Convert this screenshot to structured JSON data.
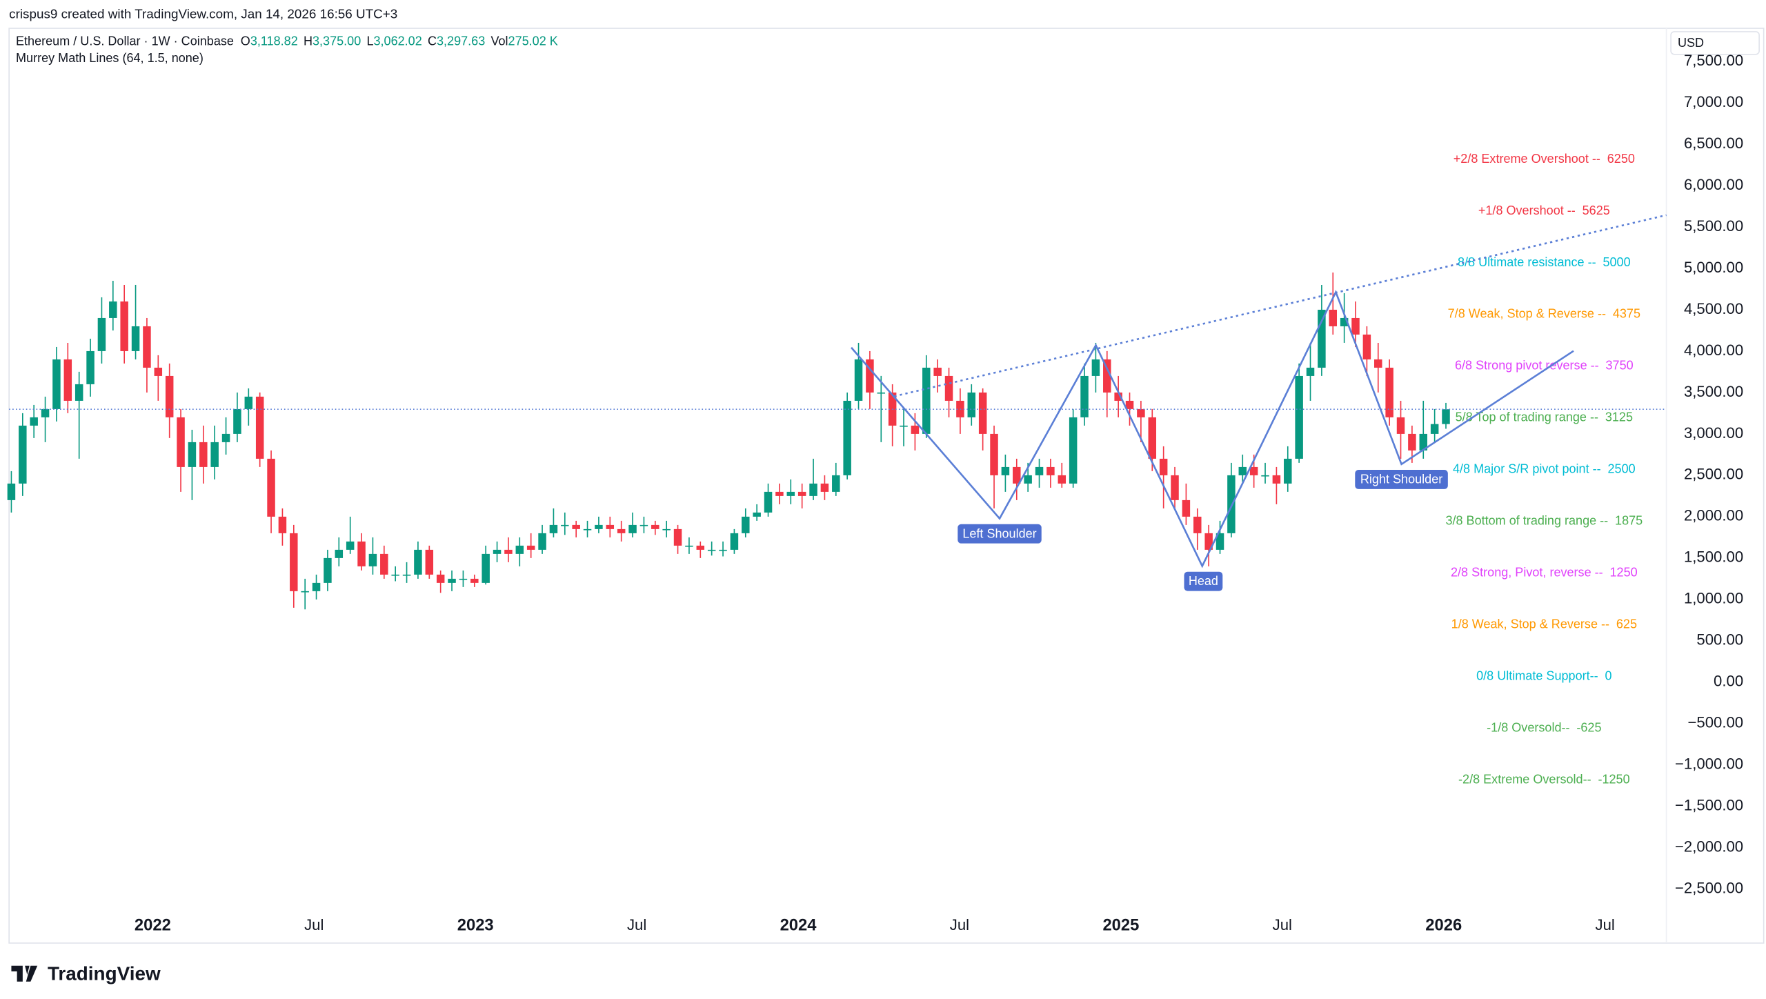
{
  "header": {
    "credit": "crispus9 created with TradingView.com, Jan 14, 2026 16:56 UTC+3",
    "symbol": "Ethereum / U.S. Dollar · 1W · Coinbase",
    "ohlc": [
      {
        "key": "O",
        "value": "3,118.82"
      },
      {
        "key": "H",
        "value": "3,375.00"
      },
      {
        "key": "L",
        "value": "3,062.02"
      },
      {
        "key": "C",
        "value": "3,297.63"
      },
      {
        "key": "Vol",
        "value": "275.02 K"
      }
    ],
    "indicator": "Murrey Math Lines (64, 1.5, none)"
  },
  "chart_data": {
    "type": "candlestick",
    "y_axis_label": "USD",
    "up_color": "#089981",
    "down_color": "#f23645",
    "grid": false,
    "xlim": [
      2021.555,
      2026.69
    ],
    "ylim": [
      -2700,
      7900
    ],
    "xticks": [
      2022,
      {
        "value": 2022.5,
        "label": "Jul"
      },
      2023,
      {
        "value": 2023.5,
        "label": "Jul"
      },
      2024,
      {
        "value": 2024.5,
        "label": "Jul"
      },
      2025,
      {
        "value": 2025.5,
        "label": "Jul"
      },
      2026,
      {
        "value": 2026.5,
        "label": "Jul"
      }
    ],
    "yticks": [
      {
        "value": 7500,
        "label": "7,500.00"
      },
      {
        "value": 7000,
        "label": "7,000.00"
      },
      {
        "value": 6500,
        "label": "6,500.00"
      },
      {
        "value": 6000,
        "label": "6,000.00"
      },
      {
        "value": 5500,
        "label": "5,500.00"
      },
      {
        "value": 5000,
        "label": "5,000.00"
      },
      {
        "value": 4500,
        "label": "4,500.00"
      },
      {
        "value": 4000,
        "label": "4,000.00"
      },
      {
        "value": 3500,
        "label": "3,500.00"
      },
      {
        "value": 3000,
        "label": "3,000.00"
      },
      {
        "value": 2500,
        "label": "2,500.00"
      },
      {
        "value": 2000,
        "label": "2,000.00"
      },
      {
        "value": 1500,
        "label": "1,500.00"
      },
      {
        "value": 1000,
        "label": "1,000.00"
      },
      {
        "value": 500,
        "label": "500.00"
      },
      {
        "value": 0,
        "label": "0.00"
      },
      {
        "value": -500,
        "label": "−500.00"
      },
      {
        "value": -1000,
        "label": "−1,000.00"
      },
      {
        "value": -1500,
        "label": "−1,500.00"
      },
      {
        "value": -2000,
        "label": "−2,000.00"
      },
      {
        "value": -2500,
        "label": "−2,500.00"
      }
    ],
    "x": [
      2021.562,
      2021.597,
      2021.632,
      2021.667,
      2021.702,
      2021.737,
      2021.772,
      2021.807,
      2021.842,
      2021.877,
      2021.912,
      2021.947,
      2021.982,
      2022.017,
      2022.052,
      2022.087,
      2022.122,
      2022.157,
      2022.192,
      2022.227,
      2022.262,
      2022.297,
      2022.332,
      2022.367,
      2022.402,
      2022.437,
      2022.472,
      2022.507,
      2022.542,
      2022.577,
      2022.612,
      2022.647,
      2022.682,
      2022.717,
      2022.752,
      2022.787,
      2022.822,
      2022.857,
      2022.892,
      2022.927,
      2022.962,
      2022.997,
      2023.032,
      2023.067,
      2023.102,
      2023.137,
      2023.172,
      2023.207,
      2023.242,
      2023.277,
      2023.312,
      2023.347,
      2023.382,
      2023.417,
      2023.452,
      2023.487,
      2023.522,
      2023.557,
      2023.592,
      2023.627,
      2023.662,
      2023.697,
      2023.732,
      2023.767,
      2023.802,
      2023.837,
      2023.872,
      2023.907,
      2023.942,
      2023.977,
      2024.012,
      2024.047,
      2024.082,
      2024.117,
      2024.152,
      2024.187,
      2024.222,
      2024.257,
      2024.292,
      2024.327,
      2024.362,
      2024.397,
      2024.432,
      2024.467,
      2024.502,
      2024.537,
      2024.572,
      2024.607,
      2024.642,
      2024.677,
      2024.712,
      2024.747,
      2024.782,
      2024.817,
      2024.852,
      2024.887,
      2024.922,
      2024.957,
      2024.992,
      2025.027,
      2025.062,
      2025.097,
      2025.132,
      2025.167,
      2025.202,
      2025.237,
      2025.272,
      2025.307,
      2025.342,
      2025.377,
      2025.412,
      2025.447,
      2025.482,
      2025.517,
      2025.552,
      2025.587,
      2025.622,
      2025.657,
      2025.692,
      2025.727,
      2025.762,
      2025.797,
      2025.832,
      2025.867,
      2025.902,
      2025.937,
      2025.972,
      2026.007
    ],
    "open": [
      2200,
      2400,
      3100,
      3200,
      3300,
      3900,
      3400,
      3600,
      4000,
      4400,
      4600,
      4000,
      4300,
      3800,
      3700,
      3200,
      2600,
      2900,
      2600,
      2900,
      3000,
      3300,
      3450,
      2700,
      2000,
      1800,
      1100,
      1100,
      1200,
      1500,
      1600,
      1700,
      1400,
      1550,
      1300,
      1300,
      1300,
      1600,
      1300,
      1200,
      1250,
      1250,
      1200,
      1550,
      1600,
      1550,
      1650,
      1600,
      1800,
      1900,
      1900,
      1850,
      1850,
      1900,
      1850,
      1800,
      1900,
      1900,
      1850,
      1850,
      1650,
      1650,
      1600,
      1600,
      1600,
      1800,
      2000,
      2050,
      2300,
      2250,
      2300,
      2250,
      2400,
      2300,
      2500,
      3400,
      3900,
      3500,
      3500,
      3100,
      3100,
      3000,
      3800,
      3700,
      3400,
      3200,
      3500,
      3000,
      2500,
      2600,
      2400,
      2500,
      2600,
      2500,
      2400,
      3200,
      3700,
      3900,
      3500,
      3400,
      3300,
      3200,
      2700,
      2500,
      2200,
      2000,
      1800,
      1600,
      1800,
      2500,
      2600,
      2500,
      2500,
      2400,
      2700,
      3700,
      3800,
      4500,
      4300,
      4400,
      4200,
      3900,
      3800,
      3200,
      3000,
      2800,
      3000,
      3118.82
    ],
    "high": [
      2550,
      3250,
      3350,
      3450,
      4050,
      4100,
      3750,
      4150,
      4650,
      4850,
      4800,
      4800,
      4400,
      3950,
      3850,
      3300,
      3050,
      3100,
      3100,
      3200,
      3500,
      3550,
      3500,
      2800,
      2100,
      1900,
      1250,
      1300,
      1600,
      1750,
      2000,
      1800,
      1750,
      1650,
      1400,
      1450,
      1700,
      1650,
      1350,
      1350,
      1350,
      1300,
      1650,
      1700,
      1750,
      1750,
      1800,
      1900,
      2100,
      2050,
      1950,
      1950,
      2000,
      2000,
      1950,
      2050,
      2000,
      1950,
      1950,
      1900,
      1750,
      1700,
      1700,
      1700,
      1850,
      2100,
      2150,
      2400,
      2400,
      2450,
      2400,
      2700,
      2500,
      2650,
      3500,
      4100,
      4000,
      3700,
      3600,
      3300,
      3250,
      3950,
      3900,
      3800,
      3550,
      3600,
      3550,
      3100,
      2750,
      2700,
      2650,
      2700,
      2700,
      2650,
      3300,
      3850,
      4100,
      4000,
      3700,
      3500,
      3400,
      3300,
      2850,
      2600,
      2400,
      2100,
      1900,
      1950,
      2650,
      2750,
      2750,
      2650,
      2600,
      2850,
      3850,
      4100,
      4800,
      4950,
      4700,
      4600,
      4300,
      4100,
      3900,
      3400,
      3100,
      3400,
      3300,
      3375
    ],
    "low": [
      2050,
      2250,
      2950,
      2900,
      3150,
      3250,
      2700,
      3450,
      3850,
      4250,
      3850,
      3900,
      3500,
      3400,
      2950,
      2300,
      2200,
      2400,
      2450,
      2750,
      2900,
      3100,
      2600,
      1800,
      1650,
      900,
      880,
      1000,
      1100,
      1400,
      1550,
      1350,
      1300,
      1250,
      1220,
      1200,
      1250,
      1250,
      1080,
      1100,
      1150,
      1150,
      1180,
      1450,
      1450,
      1400,
      1500,
      1550,
      1750,
      1780,
      1750,
      1750,
      1800,
      1750,
      1700,
      1750,
      1800,
      1780,
      1750,
      1550,
      1550,
      1500,
      1530,
      1520,
      1550,
      1750,
      1950,
      2000,
      2150,
      2150,
      2100,
      2200,
      2200,
      2250,
      2450,
      3300,
      3300,
      2900,
      2850,
      2850,
      2800,
      2950,
      3500,
      3200,
      3000,
      3100,
      2800,
      2100,
      2300,
      2200,
      2300,
      2350,
      2350,
      2350,
      2350,
      3100,
      3500,
      3200,
      3200,
      3100,
      2900,
      2550,
      2100,
      2100,
      1900,
      1600,
      1400,
      1550,
      1750,
      2400,
      2350,
      2400,
      2150,
      2300,
      2650,
      3400,
      3700,
      4200,
      4100,
      4050,
      3700,
      3500,
      3100,
      2700,
      2650,
      2700,
      2900,
      3062.02
    ],
    "close": [
      2400,
      3100,
      3200,
      3300,
      3900,
      3400,
      3600,
      4000,
      4400,
      4600,
      4000,
      4300,
      3800,
      3700,
      3200,
      2600,
      2900,
      2600,
      2900,
      3000,
      3300,
      3450,
      2700,
      2000,
      1800,
      1100,
      1100,
      1200,
      1500,
      1600,
      1700,
      1400,
      1550,
      1300,
      1300,
      1300,
      1600,
      1300,
      1200,
      1250,
      1250,
      1200,
      1550,
      1600,
      1550,
      1650,
      1600,
      1800,
      1900,
      1900,
      1850,
      1850,
      1900,
      1850,
      1800,
      1900,
      1900,
      1850,
      1850,
      1650,
      1650,
      1600,
      1600,
      1600,
      1800,
      2000,
      2050,
      2300,
      2250,
      2300,
      2250,
      2400,
      2300,
      2500,
      3400,
      3900,
      3500,
      3500,
      3100,
      3100,
      3000,
      3800,
      3700,
      3400,
      3200,
      3500,
      3000,
      2500,
      2600,
      2400,
      2500,
      2600,
      2500,
      2400,
      3200,
      3700,
      3900,
      3500,
      3400,
      3300,
      3200,
      2700,
      2500,
      2200,
      2000,
      1800,
      1600,
      1800,
      2500,
      2600,
      2500,
      2500,
      2400,
      2700,
      3700,
      3800,
      4500,
      4300,
      4400,
      4200,
      3900,
      3800,
      3200,
      3000,
      2800,
      3000,
      3118.82,
      3297.63
    ],
    "murrey_levels": [
      {
        "name": "+2/8 Extreme Overshoot --",
        "value": 6250,
        "color": "#f23645"
      },
      {
        "name": "+1/8 Overshoot --",
        "value": 5625,
        "color": "#f23645"
      },
      {
        "name": "8/8 Ultimate resistance --",
        "value": 5000,
        "color": "#00bcd4"
      },
      {
        "name": "7/8 Weak, Stop & Reverse --",
        "value": 4375,
        "color": "#ff9800"
      },
      {
        "name": "6/8 Strong pivot reverse --",
        "value": 3750,
        "color": "#e040fb"
      },
      {
        "name": "5/8 Top of trading range --",
        "value": 3125,
        "color": "#4caf50"
      },
      {
        "name": "4/8 Major S/R pivot point --",
        "value": 2500,
        "color": "#00bcd4"
      },
      {
        "name": "3/8 Bottom of trading range --",
        "value": 1875,
        "color": "#4caf50"
      },
      {
        "name": "2/8 Strong, Pivot, reverse --",
        "value": 1250,
        "color": "#e040fb"
      },
      {
        "name": "1/8 Weak, Stop & Reverse --",
        "value": 625,
        "color": "#ff9800"
      },
      {
        "name": "0/8 Ultimate Support--",
        "value": 0,
        "color": "#00bcd4"
      },
      {
        "name": "-1/8 Oversold--",
        "value": -625,
        "color": "#4caf50"
      },
      {
        "name": "-2/8 Extreme Oversold--",
        "value": -1250,
        "color": "#4caf50"
      }
    ],
    "annotations": [
      "Left Shoulder",
      "Head",
      "Right Shoulder"
    ]
  },
  "footer": {
    "logo": "TradingView"
  }
}
